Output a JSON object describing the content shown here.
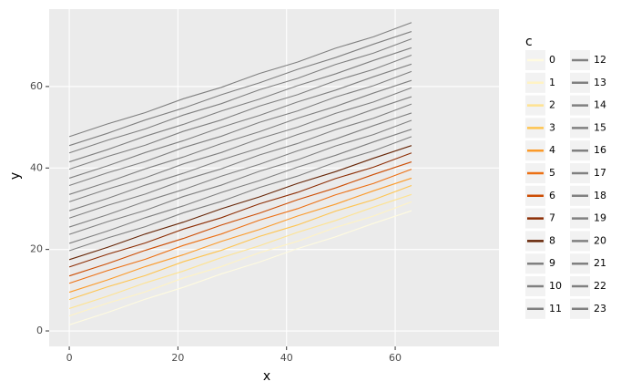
{
  "chart_data": {
    "type": "line",
    "x_label": "x",
    "y_label": "y",
    "legend_title": "c",
    "x": [
      0,
      7,
      14,
      21,
      28,
      35,
      42,
      49,
      56,
      63
    ],
    "xlim": [
      -3.7,
      79.1
    ],
    "xticks": [
      0,
      20,
      40,
      60
    ],
    "ylim": [
      -3.8,
      79
    ],
    "yticks": [
      0,
      20,
      40,
      60
    ],
    "grid": true,
    "legend": "right",
    "series": [
      {
        "name": "0",
        "color": "#fffbe0",
        "values": [
          1.5,
          4.5,
          7.8,
          10.7,
          14,
          16.9,
          20.2,
          23.1,
          26.4,
          29.5
        ]
      },
      {
        "name": "1",
        "color": "#fff3c4",
        "values": [
          3.7,
          6.8,
          9.6,
          13,
          15.8,
          19.2,
          22,
          25.4,
          28.2,
          31.7
        ]
      },
      {
        "name": "2",
        "color": "#fee391",
        "values": [
          5.5,
          8.5,
          11.8,
          14.7,
          18,
          20.9,
          24.2,
          27.1,
          30.4,
          33.5
        ]
      },
      {
        "name": "3",
        "color": "#fec44f",
        "values": [
          7.7,
          10.8,
          13.6,
          17,
          19.8,
          23.2,
          26,
          29.4,
          32.2,
          35.7
        ]
      },
      {
        "name": "4",
        "color": "#fb9a29",
        "values": [
          9.5,
          12.5,
          15.8,
          18.7,
          22,
          24.9,
          28.2,
          31.1,
          34.4,
          37.5
        ]
      },
      {
        "name": "5",
        "color": "#ec7014",
        "values": [
          11.7,
          14.8,
          17.6,
          21,
          23.8,
          27.2,
          30,
          33.4,
          36.2,
          39.7
        ]
      },
      {
        "name": "6",
        "color": "#cc4c02",
        "values": [
          13.5,
          16.5,
          19.8,
          22.7,
          26,
          28.9,
          32.2,
          35.1,
          38.4,
          41.5
        ]
      },
      {
        "name": "7",
        "color": "#8c2d04",
        "values": [
          15.7,
          18.8,
          21.6,
          25,
          27.8,
          31.2,
          34,
          37.4,
          40.2,
          43.7
        ]
      },
      {
        "name": "8",
        "color": "#662506",
        "values": [
          17.5,
          20.5,
          23.8,
          26.7,
          30,
          32.9,
          36.2,
          39.1,
          42.4,
          45.5
        ]
      },
      {
        "name": "9",
        "color": "#808080",
        "values": [
          19.7,
          22.8,
          25.6,
          29,
          31.8,
          35.2,
          38,
          41.4,
          44.2,
          47.7
        ]
      },
      {
        "name": "10",
        "color": "#808080",
        "values": [
          21.5,
          24.5,
          27.8,
          30.7,
          34,
          36.9,
          40.2,
          43.1,
          46.4,
          49.5
        ]
      },
      {
        "name": "11",
        "color": "#808080",
        "values": [
          23.7,
          26.8,
          29.6,
          33,
          35.8,
          39.2,
          42,
          45.4,
          48.2,
          51.7
        ]
      },
      {
        "name": "12",
        "color": "#808080",
        "values": [
          25.5,
          28.5,
          31.8,
          34.7,
          38,
          40.9,
          44.2,
          47.1,
          50.4,
          53.5
        ]
      },
      {
        "name": "13",
        "color": "#808080",
        "values": [
          27.7,
          30.8,
          33.6,
          37,
          39.8,
          43.2,
          46,
          49.4,
          52.2,
          55.7
        ]
      },
      {
        "name": "14",
        "color": "#808080",
        "values": [
          29.5,
          32.5,
          35.8,
          38.7,
          42,
          44.9,
          48.2,
          51.1,
          54.4,
          57.5
        ]
      },
      {
        "name": "15",
        "color": "#808080",
        "values": [
          31.7,
          34.8,
          37.6,
          41,
          43.8,
          47.2,
          50,
          53.4,
          56.2,
          59.7
        ]
      },
      {
        "name": "16",
        "color": "#808080",
        "values": [
          33.5,
          36.5,
          39.8,
          42.7,
          46,
          48.9,
          52.2,
          55.1,
          58.4,
          61.5
        ]
      },
      {
        "name": "17",
        "color": "#808080",
        "values": [
          35.7,
          38.8,
          41.6,
          45,
          47.8,
          51.2,
          54,
          57.4,
          60.2,
          63.7
        ]
      },
      {
        "name": "18",
        "color": "#808080",
        "values": [
          37.5,
          40.5,
          43.8,
          46.7,
          50,
          52.9,
          56.2,
          59.1,
          62.4,
          65.5
        ]
      },
      {
        "name": "19",
        "color": "#808080",
        "values": [
          39.7,
          42.8,
          45.6,
          49,
          51.8,
          55.2,
          58,
          61.4,
          64.2,
          67.7
        ]
      },
      {
        "name": "20",
        "color": "#808080",
        "values": [
          41.5,
          44.5,
          47.8,
          50.7,
          54,
          56.9,
          60.2,
          63.1,
          66.4,
          69.5
        ]
      },
      {
        "name": "21",
        "color": "#808080",
        "values": [
          43.7,
          46.8,
          49.6,
          53,
          55.8,
          59.2,
          62,
          65.4,
          68.2,
          71.7
        ]
      },
      {
        "name": "22",
        "color": "#808080",
        "values": [
          45.5,
          48.5,
          51.8,
          54.7,
          58,
          60.9,
          64.2,
          67.1,
          70.4,
          73.5
        ]
      },
      {
        "name": "23",
        "color": "#808080",
        "values": [
          47.7,
          50.8,
          53.6,
          57,
          59.8,
          63.2,
          66,
          69.4,
          72.2,
          75.7
        ]
      }
    ]
  }
}
